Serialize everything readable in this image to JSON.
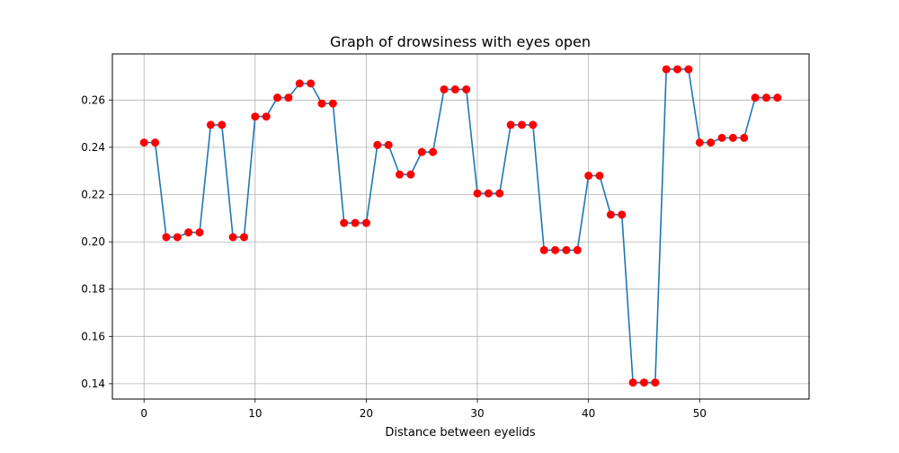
{
  "chart_data": {
    "type": "line",
    "title": "Graph of drowsiness with eyes open",
    "xlabel": "Distance between eyelids",
    "ylabel": "",
    "xlim": [
      -2.85,
      59.85
    ],
    "ylim": [
      0.1335,
      0.2795
    ],
    "x_ticks": [
      0,
      10,
      20,
      30,
      40,
      50
    ],
    "y_ticks": [
      0.14,
      0.16,
      0.18,
      0.2,
      0.22,
      0.24,
      0.26
    ],
    "grid": true,
    "legend": "none",
    "line_color": "#1f77b4",
    "marker_color": "#ff0000",
    "series": [
      {
        "x": [
          0,
          1,
          2,
          3,
          4,
          5,
          6,
          7,
          8,
          9,
          10,
          11,
          12,
          13,
          14,
          15,
          16,
          17,
          18,
          19,
          20,
          21,
          22,
          23,
          24,
          25,
          26,
          27,
          28,
          29,
          30,
          31,
          32,
          33,
          34,
          35,
          36,
          37,
          38,
          39,
          40,
          41,
          42,
          43,
          44,
          45,
          46,
          47,
          48,
          49,
          50,
          51,
          52,
          53,
          54,
          55,
          56,
          57
        ],
        "values": [
          0.242,
          0.242,
          0.202,
          0.202,
          0.204,
          0.204,
          0.2495,
          0.2495,
          0.202,
          0.202,
          0.253,
          0.253,
          0.261,
          0.261,
          0.267,
          0.267,
          0.2585,
          0.2585,
          0.208,
          0.208,
          0.208,
          0.241,
          0.241,
          0.2285,
          0.2285,
          0.238,
          0.238,
          0.2645,
          0.2645,
          0.2645,
          0.2205,
          0.2205,
          0.2205,
          0.2495,
          0.2495,
          0.2495,
          0.1965,
          0.1965,
          0.1965,
          0.1965,
          0.228,
          0.228,
          0.2115,
          0.2115,
          0.1405,
          0.1405,
          0.1405,
          0.273,
          0.273,
          0.273,
          0.242,
          0.242,
          0.244,
          0.244,
          0.244,
          0.261,
          0.261,
          0.261
        ]
      }
    ]
  }
}
